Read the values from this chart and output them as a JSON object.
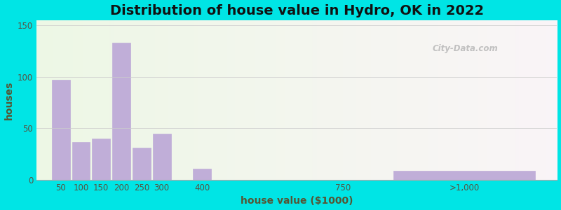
{
  "title": "Distribution of house value in Hydro, OK in 2022",
  "xlabel": "house value ($1000)",
  "ylabel": "houses",
  "bar_color": "#c0aed8",
  "bar_edgecolor": "#a090c0",
  "bg_outer": "#00e5e5",
  "yticks": [
    0,
    50,
    100,
    150
  ],
  "ylim": [
    0,
    155
  ],
  "xtick_labels": [
    "50",
    "100",
    "150",
    "200",
    "250",
    "300",
    "400",
    "750",
    ">1,000"
  ],
  "bar_heights": [
    97,
    37,
    40,
    133,
    31,
    45,
    11,
    0,
    9
  ],
  "bar_positions": [
    50,
    100,
    150,
    200,
    250,
    300,
    400,
    750,
    1050
  ],
  "bar_widths": [
    45,
    45,
    45,
    45,
    45,
    45,
    45,
    45,
    350
  ],
  "xlim": [
    -10,
    1280
  ],
  "xtick_positions": [
    50,
    100,
    150,
    200,
    250,
    300,
    400,
    750,
    1050
  ],
  "grid_color": "#cccccc",
  "title_fontsize": 14,
  "axis_fontsize": 10,
  "tick_fontsize": 8.5,
  "watermark": "City-Data.com"
}
